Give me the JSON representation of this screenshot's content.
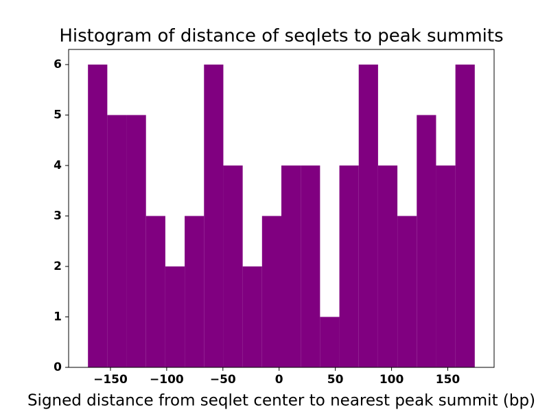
{
  "chart_data": {
    "type": "histogram",
    "title": "Histogram of distance of seqlets to peak summits",
    "xlabel": "Signed distance from seqlet center to nearest peak summit (bp)",
    "bins": [
      -170,
      -152.8,
      -135.6,
      -118.4,
      -101.2,
      -84,
      -66.8,
      -49.6,
      -32.4,
      -15.2,
      2,
      19.2,
      36.4,
      53.6,
      70.8,
      88,
      105.2,
      122.4,
      139.6,
      156.8,
      174
    ],
    "values": [
      6,
      5,
      5,
      3,
      2,
      3,
      6,
      4,
      2,
      3,
      4,
      4,
      1,
      4,
      6,
      4,
      3,
      5,
      4,
      6
    ],
    "color": "#800080",
    "xlim": [
      -187.2,
      191.2
    ],
    "ylim": [
      0,
      6.3
    ],
    "xticks": [
      {
        "value": -150,
        "label": "−150"
      },
      {
        "value": -100,
        "label": "−100"
      },
      {
        "value": -50,
        "label": "−50"
      },
      0,
      50,
      100,
      150
    ],
    "yticks": [
      0,
      1,
      2,
      3,
      4,
      5,
      6
    ]
  }
}
